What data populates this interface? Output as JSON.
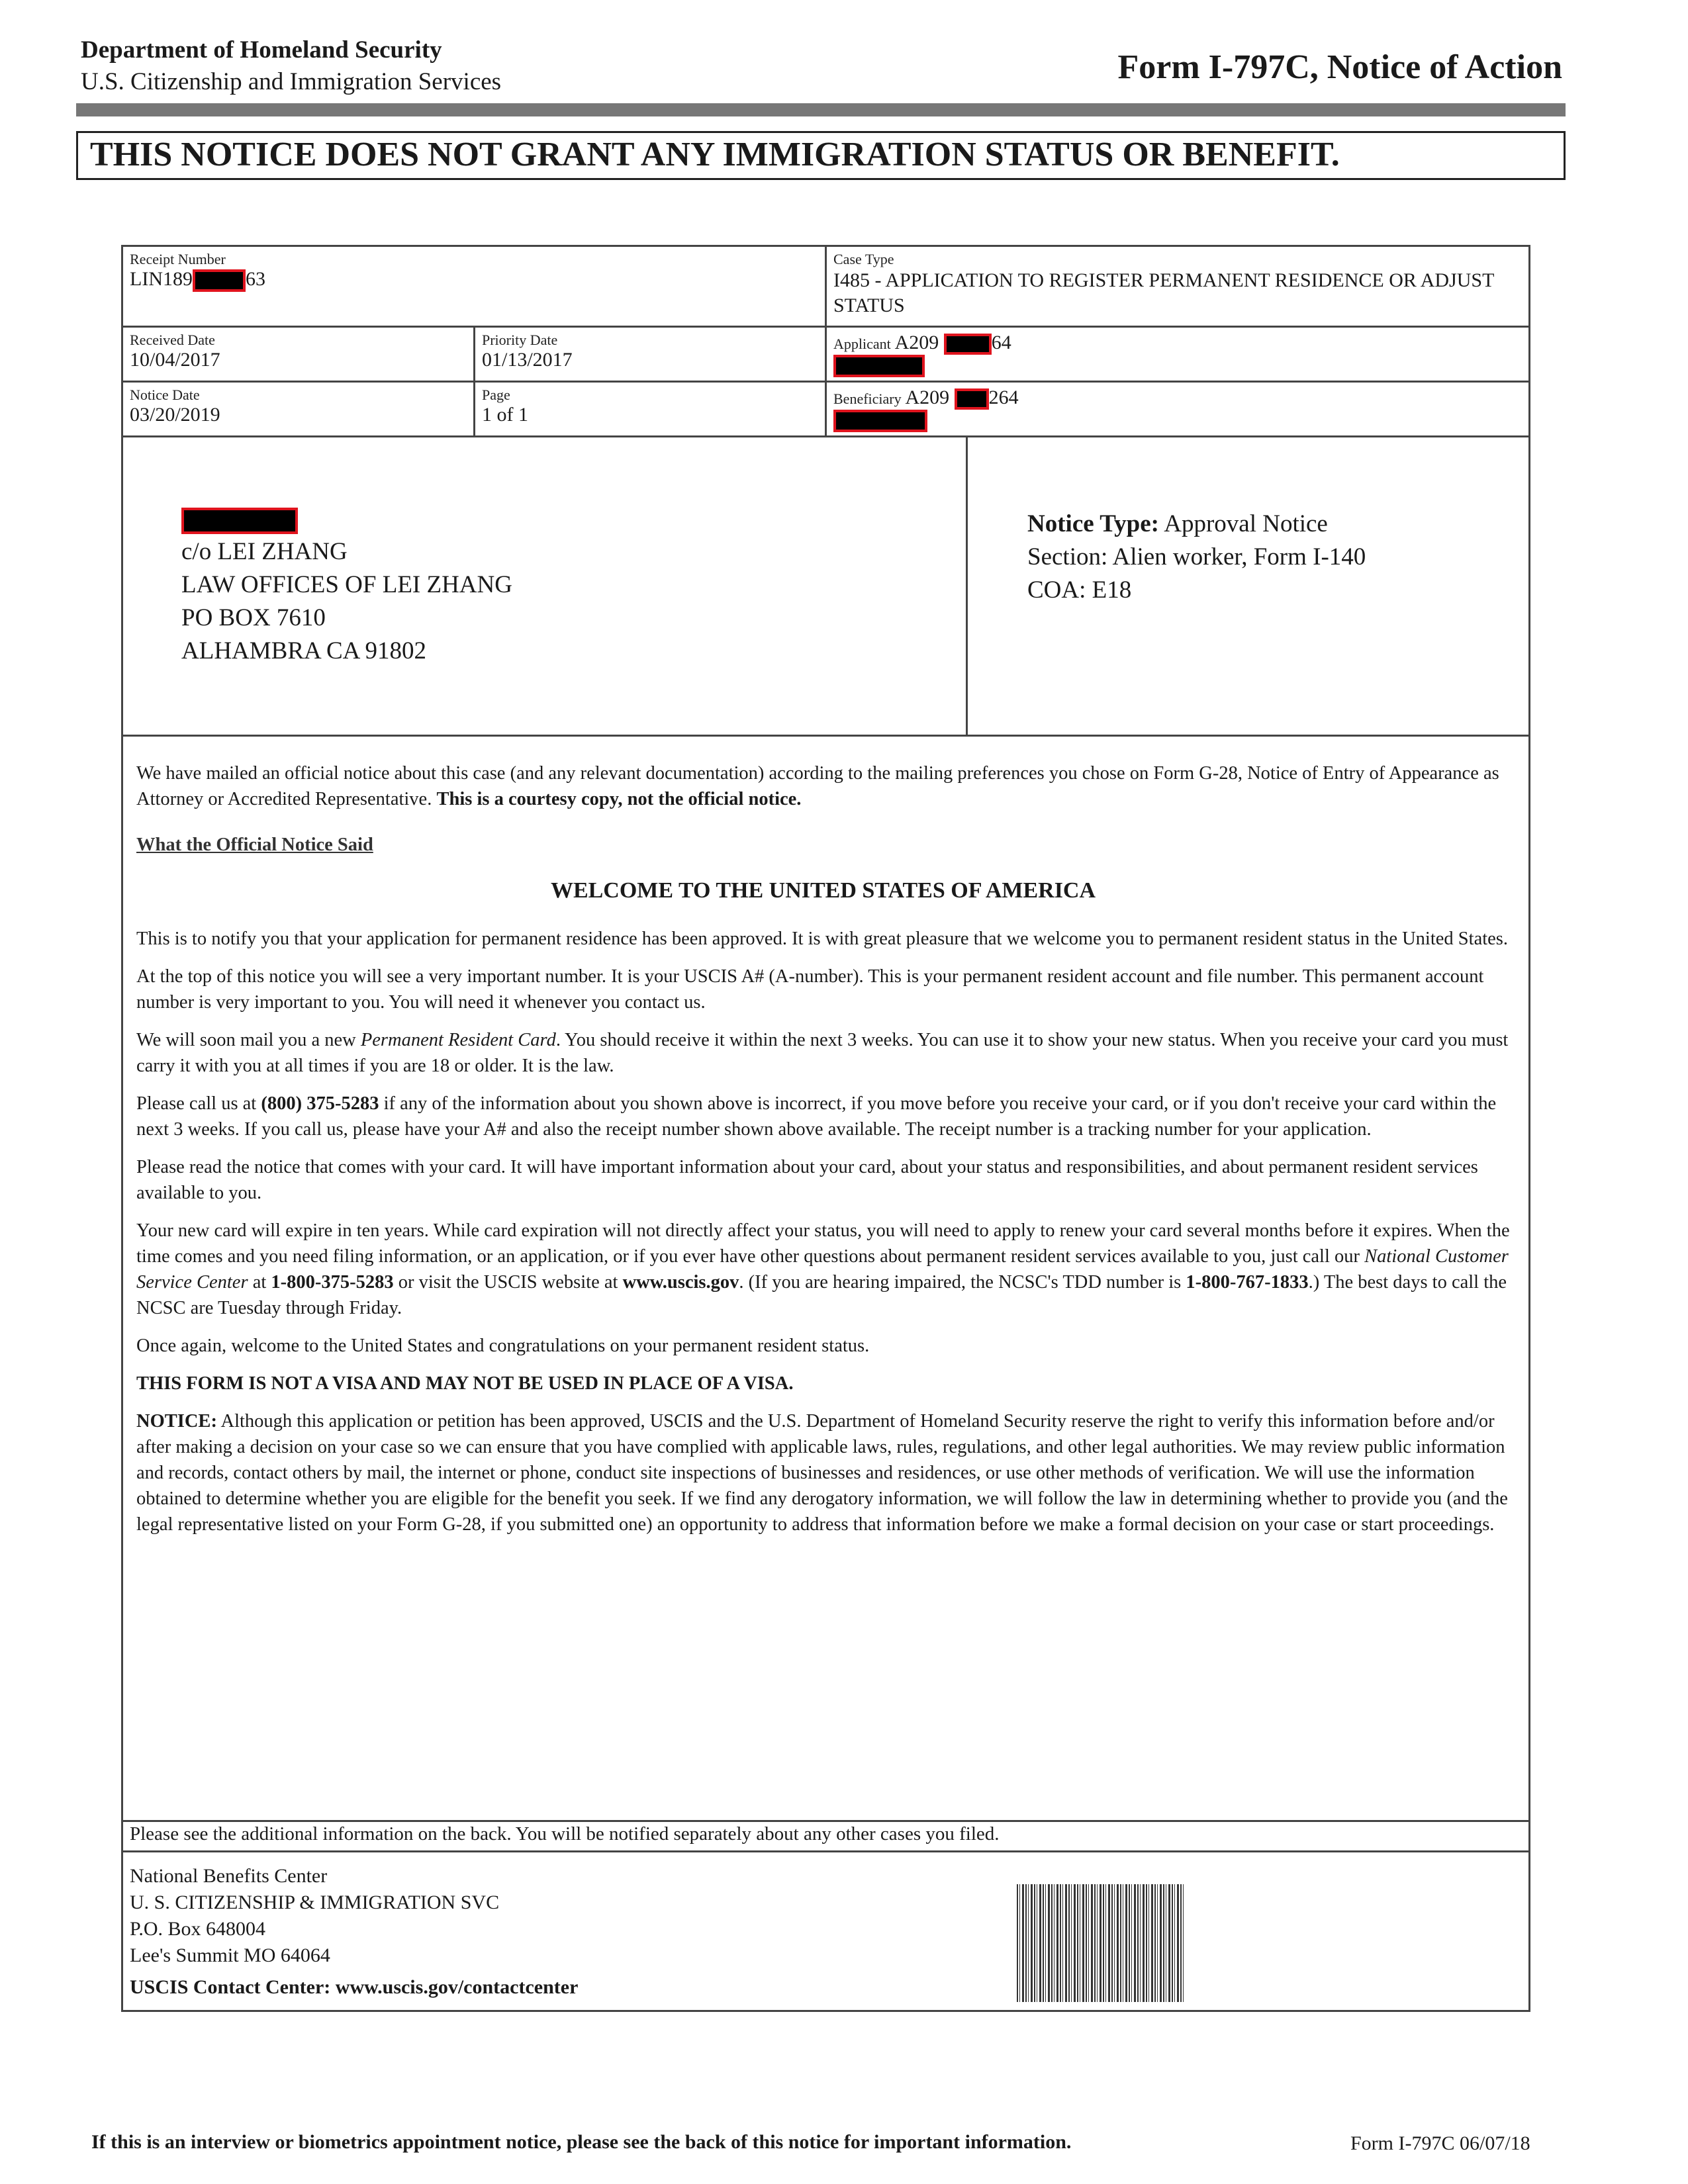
{
  "header": {
    "agency": "Department of Homeland Security",
    "subagency": "U.S. Citizenship and Immigration Services",
    "form_title": "Form I-797C, Notice of Action"
  },
  "banner": "THIS NOTICE DOES NOT GRANT ANY IMMIGRATION STATUS OR BENEFIT.",
  "fields": {
    "receipt_label": "Receipt Number",
    "receipt_prefix": "LIN189",
    "receipt_suffix": "63",
    "case_type_label": "Case Type",
    "case_type": "I485 - APPLICATION TO REGISTER PERMANENT RESIDENCE OR ADJUST STATUS",
    "received_label": "Received Date",
    "received": "10/04/2017",
    "priority_label": "Priority Date",
    "priority": "01/13/2017",
    "applicant_label": "Applicant",
    "applicant_prefix": "A209",
    "applicant_suffix": "64",
    "notice_date_label": "Notice Date",
    "notice_date": "03/20/2019",
    "page_label": "Page",
    "page": "1 of 1",
    "beneficiary_label": "Beneficiary",
    "beneficiary_prefix": "A209",
    "beneficiary_suffix": "264"
  },
  "address": [
    "c/o LEI ZHANG",
    "LAW OFFICES OF LEI ZHANG",
    "PO BOX 7610",
    "ALHAMBRA CA  91802"
  ],
  "notice": {
    "type_label": "Notice Type:",
    "type": "Approval Notice",
    "section": "Section: Alien worker, Form I-140",
    "coa": "COA: E18"
  },
  "body": {
    "intro": "We have mailed an official notice about this case (and any relevant documentation) according to the mailing preferences you chose on Form G-28, Notice of Entry of Appearance as Attorney or Accredited Representative.",
    "intro_bold": "This is a courtesy copy, not the official notice.",
    "subhead": "What the Official Notice Said",
    "welcome": "WELCOME TO THE UNITED STATES OF AMERICA",
    "p1": "This is to notify you that your application for permanent residence has been approved. It is with great pleasure that we welcome you to permanent resident status in the United States.",
    "p2": "At the top of this notice you will see a very important number. It is your USCIS A# (A-number). This is your permanent resident account and file number. This permanent account number is very important to you. You will need it whenever you contact us.",
    "p3a": "We will soon mail you a new ",
    "p3i": "Permanent Resident Card",
    "p3b": ". You should receive it within the next 3 weeks. You can use it to show your new status. When you receive your card you must carry it with you at all times if you are 18 or older. It is the law.",
    "p4a": "Please call us at ",
    "p4b": "(800) 375-5283",
    "p4c": " if any of the information about you shown above is incorrect, if you move before you receive your card, or if you don't receive your card within the next 3 weeks. If you call us, please have your A# and also the receipt number shown above available. The receipt number is a tracking number for your application.",
    "p5": "Please read the notice that comes with your card. It will have important information about your card, about your status and responsibilities, and about permanent resident services available to you.",
    "p6a": "Your new card will expire in ten years. While card expiration will not directly affect your status, you will need to apply to renew your card several months before it expires. When the time comes and you need filing information, or an application, or if you ever have other questions about permanent resident services available to you, just call our ",
    "p6i": "National Customer Service Center",
    "p6b": " at ",
    "p6c": "1-800-375-5283",
    "p6d": " or visit the USCIS website at ",
    "p6e": "www.uscis.gov",
    "p6f": ". (If you are hearing impaired, the NCSC's TDD number is ",
    "p6g": "1-800-767-1833",
    "p6h": ".) The best days to call the NCSC are Tuesday through Friday.",
    "p7": "Once again, welcome to the United States and congratulations on your permanent resident status.",
    "p8": "THIS FORM IS NOT A VISA AND MAY NOT BE USED IN PLACE OF A VISA.",
    "p9a": "NOTICE:",
    "p9b": " Although this application or petition has been approved, USCIS and the U.S. Department of Homeland Security reserve the right to verify this information before and/or after making a decision on your case so we can ensure that you have complied with applicable laws, rules, regulations, and other legal authorities. We may review public information and records, contact others by mail, the internet or phone, conduct site inspections of businesses and residences, or use other methods of verification. We will use the information obtained to determine whether you are eligible for the benefit you seek. If we find any derogatory information, we will follow the law in determining whether to provide you (and the legal representative listed on your Form G-28, if you submitted one) an opportunity to address that information before we make a formal decision on your case or start proceedings."
  },
  "additional": "Please see the additional information on the back. You will be notified separately about any other cases you filed.",
  "office": [
    "National Benefits Center",
    "U. S. CITIZENSHIP & IMMIGRATION SVC",
    "P.O. Box 648004",
    "Lee's Summit MO 64064"
  ],
  "contact": "USCIS Contact Center: www.uscis.gov/contactcenter",
  "footer": {
    "note": "If this is an interview or biometrics appointment notice, please see the back of this notice for important information.",
    "form": "Form I-797C  06/07/18"
  }
}
